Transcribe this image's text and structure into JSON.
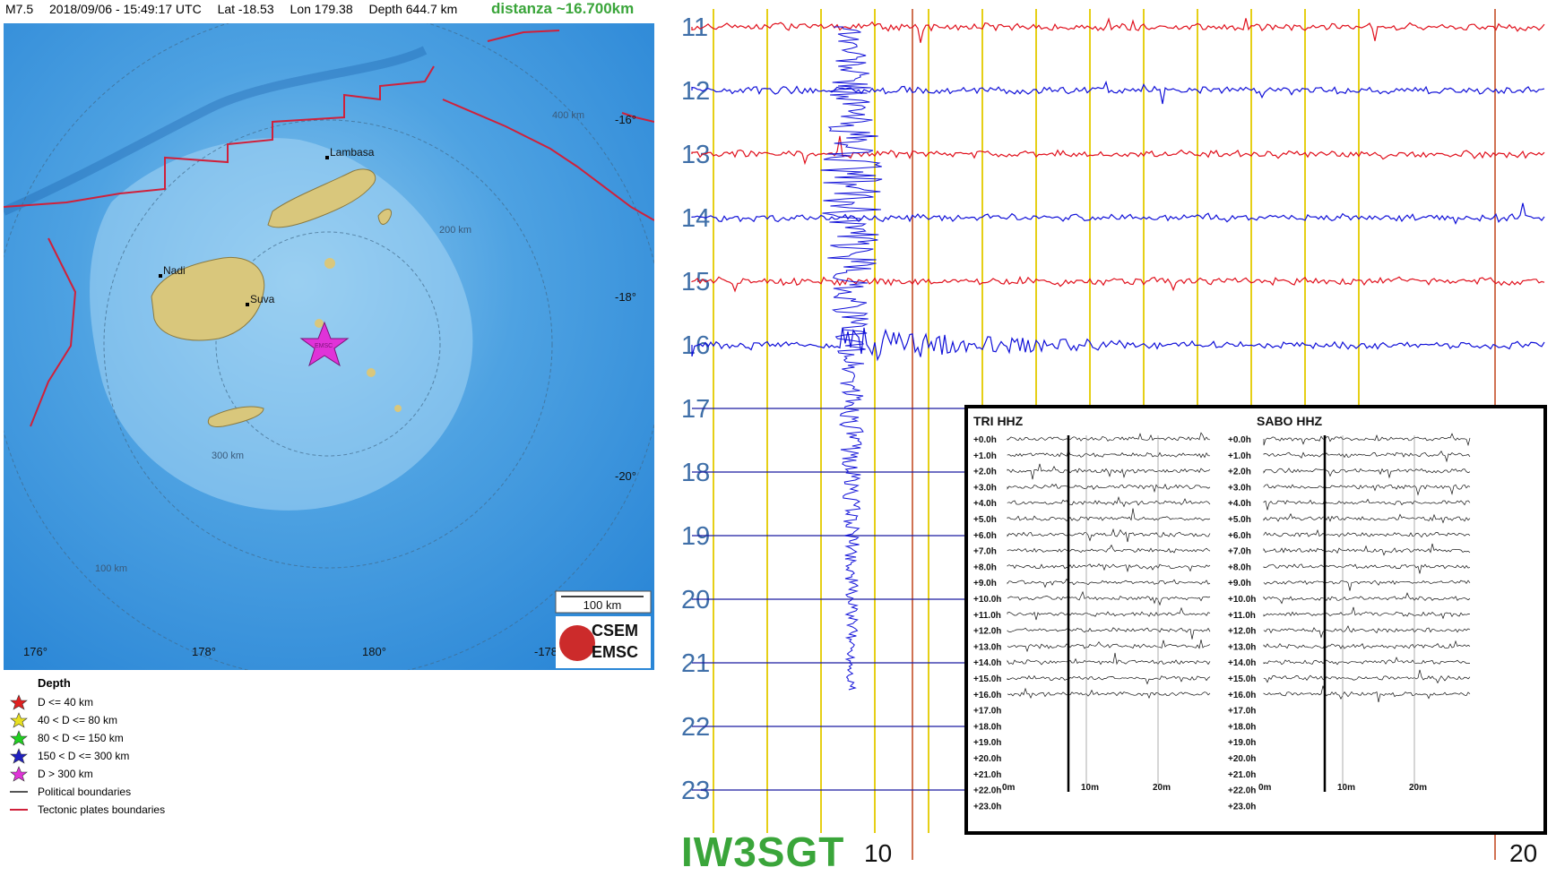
{
  "header": {
    "magnitude": "M7.5",
    "datetime": "2018/09/06 - 15:49:17 UTC",
    "lat": "Lat -18.53",
    "lon": "Lon 179.38",
    "depth": "Depth 644.7 km",
    "distance": "distanza ~16.700km"
  },
  "map": {
    "places": [
      "Lambasa",
      "Nadi",
      "Suva"
    ],
    "lat_labels": [
      "-16°",
      "-18°",
      "-20°"
    ],
    "lon_labels": [
      "176°",
      "178°",
      "180°",
      "-178"
    ],
    "ring_labels": [
      "400 km",
      "200 km",
      "300 km",
      "100 km"
    ],
    "scale_label": "100 km",
    "marker_label": "EMSC",
    "logo_lines": [
      "CSEM",
      "EMSC"
    ],
    "colors": {
      "ocean": "#2f8ed8",
      "land": "#d9c77c",
      "plates": "#d0203a",
      "marker": "#e033d8"
    }
  },
  "legend": {
    "title": "Depth",
    "items": [
      {
        "label": "D <= 40 km",
        "color": "#e02020",
        "kind": "star"
      },
      {
        "label": "40 < D <= 80 km",
        "color": "#e8e020",
        "kind": "star"
      },
      {
        "label": "80 < D <= 150 km",
        "color": "#20d020",
        "kind": "star"
      },
      {
        "label": "150 < D <= 300 km",
        "color": "#2020c0",
        "kind": "star"
      },
      {
        "label": "D > 300 km",
        "color": "#e033d8",
        "kind": "star"
      },
      {
        "label": "Political boundaries",
        "color": "#555555",
        "kind": "line"
      },
      {
        "label": "Tectonic plates boundaries",
        "color": "#d0203a",
        "kind": "line"
      }
    ]
  },
  "helicorder": {
    "hours": [
      "11",
      "12",
      "13",
      "14",
      "15",
      "16",
      "17",
      "18",
      "19",
      "20",
      "21",
      "22",
      "23"
    ],
    "minute_labels": [
      "10",
      "20"
    ],
    "trace_colors": [
      "#e0101c",
      "#1010d8"
    ],
    "callsign": "IW3SGT"
  },
  "inset": {
    "left_title": "TRI HHZ",
    "right_title": "SABO HHZ",
    "offsets": [
      "+0.0h",
      "+1.0h",
      "+2.0h",
      "+3.0h",
      "+4.0h",
      "+5.0h",
      "+6.0h",
      "+7.0h",
      "+8.0h",
      "+9.0h",
      "+10.0h",
      "+11.0h",
      "+12.0h",
      "+13.0h",
      "+14.0h",
      "+15.0h",
      "+16.0h",
      "+17.0h",
      "+18.0h",
      "+19.0h",
      "+20.0h",
      "+21.0h",
      "+22.0h",
      "+23.0h"
    ],
    "minute_labels": [
      "0m",
      "10m",
      "20m"
    ]
  }
}
